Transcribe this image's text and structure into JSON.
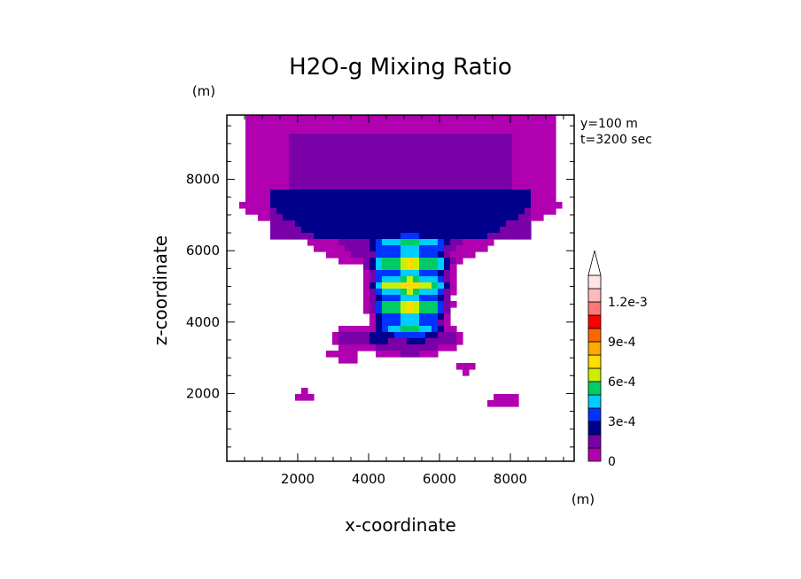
{
  "chart_data": {
    "type": "heatmap",
    "title": "H2O-g Mixing Ratio",
    "xlabel": "x-coordinate",
    "ylabel": "z-coordinate",
    "x_unit": "(m)",
    "y_unit": "(m)",
    "annotations": [
      "y=100 m",
      "t=3200 sec"
    ],
    "xlim": [
      0,
      9800
    ],
    "ylim": [
      100,
      9800
    ],
    "xticks": [
      2000,
      4000,
      6000,
      8000
    ],
    "yticks": [
      2000,
      4000,
      6000,
      8000
    ],
    "colorbar": {
      "levels": [
        0,
        0.0001,
        0.0002,
        0.0003,
        0.0004,
        0.0005,
        0.0006,
        0.0007,
        0.0008,
        0.0009,
        0.001,
        0.0011,
        0.0012,
        0.0013
      ],
      "colors": [
        "#b000b0",
        "#7a00a8",
        "#00008c",
        "#0033ff",
        "#00ccff",
        "#00cc66",
        "#ccee00",
        "#ffdd00",
        "#ffaa00",
        "#ff6600",
        "#ff0000",
        "#ff7777",
        "#ffbbbb",
        "#ffe4e4"
      ],
      "tick_labels": [
        "0",
        "3e-4",
        "6e-4",
        "9e-4",
        "1.2e-3"
      ],
      "extend": "max"
    },
    "grid": false
  }
}
